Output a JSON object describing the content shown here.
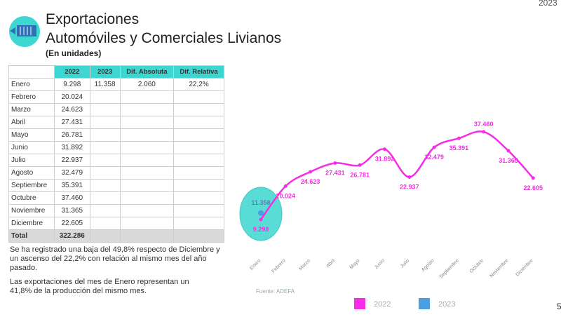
{
  "corner": "2023",
  "page_number": "5",
  "header": {
    "title_line1": "Exportaciones",
    "title_line2": "Automóviles y Comerciales Livianos",
    "subtitle": "(En unidades)"
  },
  "table": {
    "header": [
      "2022",
      "2023",
      "Dif. Absoluta",
      "Dif. Relativa"
    ],
    "rows": [
      [
        "Enero",
        "9.298",
        "11.358",
        "2.060",
        "22,2%"
      ],
      [
        "Febrero",
        "20.024"
      ],
      [
        "Marzo",
        "24.623"
      ],
      [
        "Abril",
        "27.431"
      ],
      [
        "Mayo",
        "26.781"
      ],
      [
        "Junio",
        "31.892"
      ],
      [
        "Julio",
        "22.937"
      ],
      [
        "Agosto",
        "32.479"
      ],
      [
        "Septiembre",
        "35.391"
      ],
      [
        "Octubre",
        "37.460"
      ],
      [
        "Noviembre",
        "31.365"
      ],
      [
        "Diciembre",
        "22.605"
      ]
    ],
    "total": [
      "Total",
      "322.286"
    ]
  },
  "notes": [
    "Se ha registrado una baja del 49,8% respecto de Diciembre y un ascenso del 22,2% con relación al mismo mes del año pasado.",
    "Las exportaciones del mes de Enero representan un 41,8% de la producción del mismo mes."
  ],
  "chart_data": {
    "type": "line",
    "categories": [
      "Enero",
      "Febrero",
      "Marzo",
      "Abril",
      "Mayo",
      "Junio",
      "Julio",
      "Agosto",
      "Septiembre",
      "Octubre",
      "Noviembre",
      "Diciembre"
    ],
    "series": [
      {
        "name": "2022",
        "color": "#f52ee6",
        "values": [
          9298,
          20024,
          24623,
          27431,
          26781,
          31892,
          22937,
          32479,
          35391,
          37460,
          31365,
          22605
        ],
        "value_labels": [
          "9.298",
          "20.024",
          "24.623",
          "27.431",
          "26.781",
          "31.892",
          "22.937",
          "32.479",
          "35.391",
          "37.460",
          "31.365",
          "22.605"
        ]
      },
      {
        "name": "2023",
        "color": "#4a9fe0",
        "values": [
          11358,
          null,
          null,
          null,
          null,
          null,
          null,
          null,
          null,
          null,
          null,
          null
        ],
        "value_labels": [
          "11.358",
          null,
          null,
          null,
          null,
          null,
          null,
          null,
          null,
          null,
          null,
          null
        ]
      }
    ],
    "source": "Fuente: ADEFA"
  }
}
